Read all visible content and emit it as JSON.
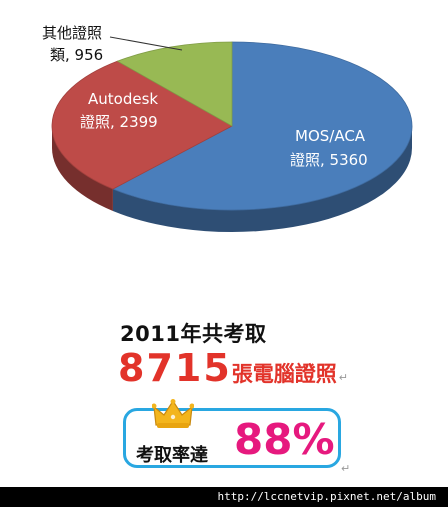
{
  "chart_data": {
    "type": "pie",
    "slices": [
      {
        "category": "MOS/ACA\n證照",
        "value": 5360,
        "color": "#4a7ebb"
      },
      {
        "category": "Autodesk\n證照",
        "value": 2399,
        "color": "#be4b48"
      },
      {
        "category": "其他證照\n類",
        "value": 956,
        "color": "#98b954"
      }
    ],
    "labels": [
      {
        "line1": "MOS/ACA",
        "line2": "證照, 5360"
      },
      {
        "line1": "Autodesk",
        "line2": "證照, 2399"
      },
      {
        "line1": "其他證照",
        "line2": "類, 956"
      }
    ]
  },
  "headline": "2011年共考取",
  "total_number": "8715",
  "total_suffix": "張電腦證照",
  "rate_label": "考取率達",
  "rate_value": "88%",
  "paragraph_mark": "↵",
  "footer_url": "http://lccnetvip.pixnet.net/album",
  "colors": {
    "headline_red": "#e2332a",
    "rate_pink": "#e6197e",
    "rate_border": "#29a7e1",
    "crown_gold": "#f3b51d"
  },
  "icons": {
    "crown": "crown-icon"
  }
}
